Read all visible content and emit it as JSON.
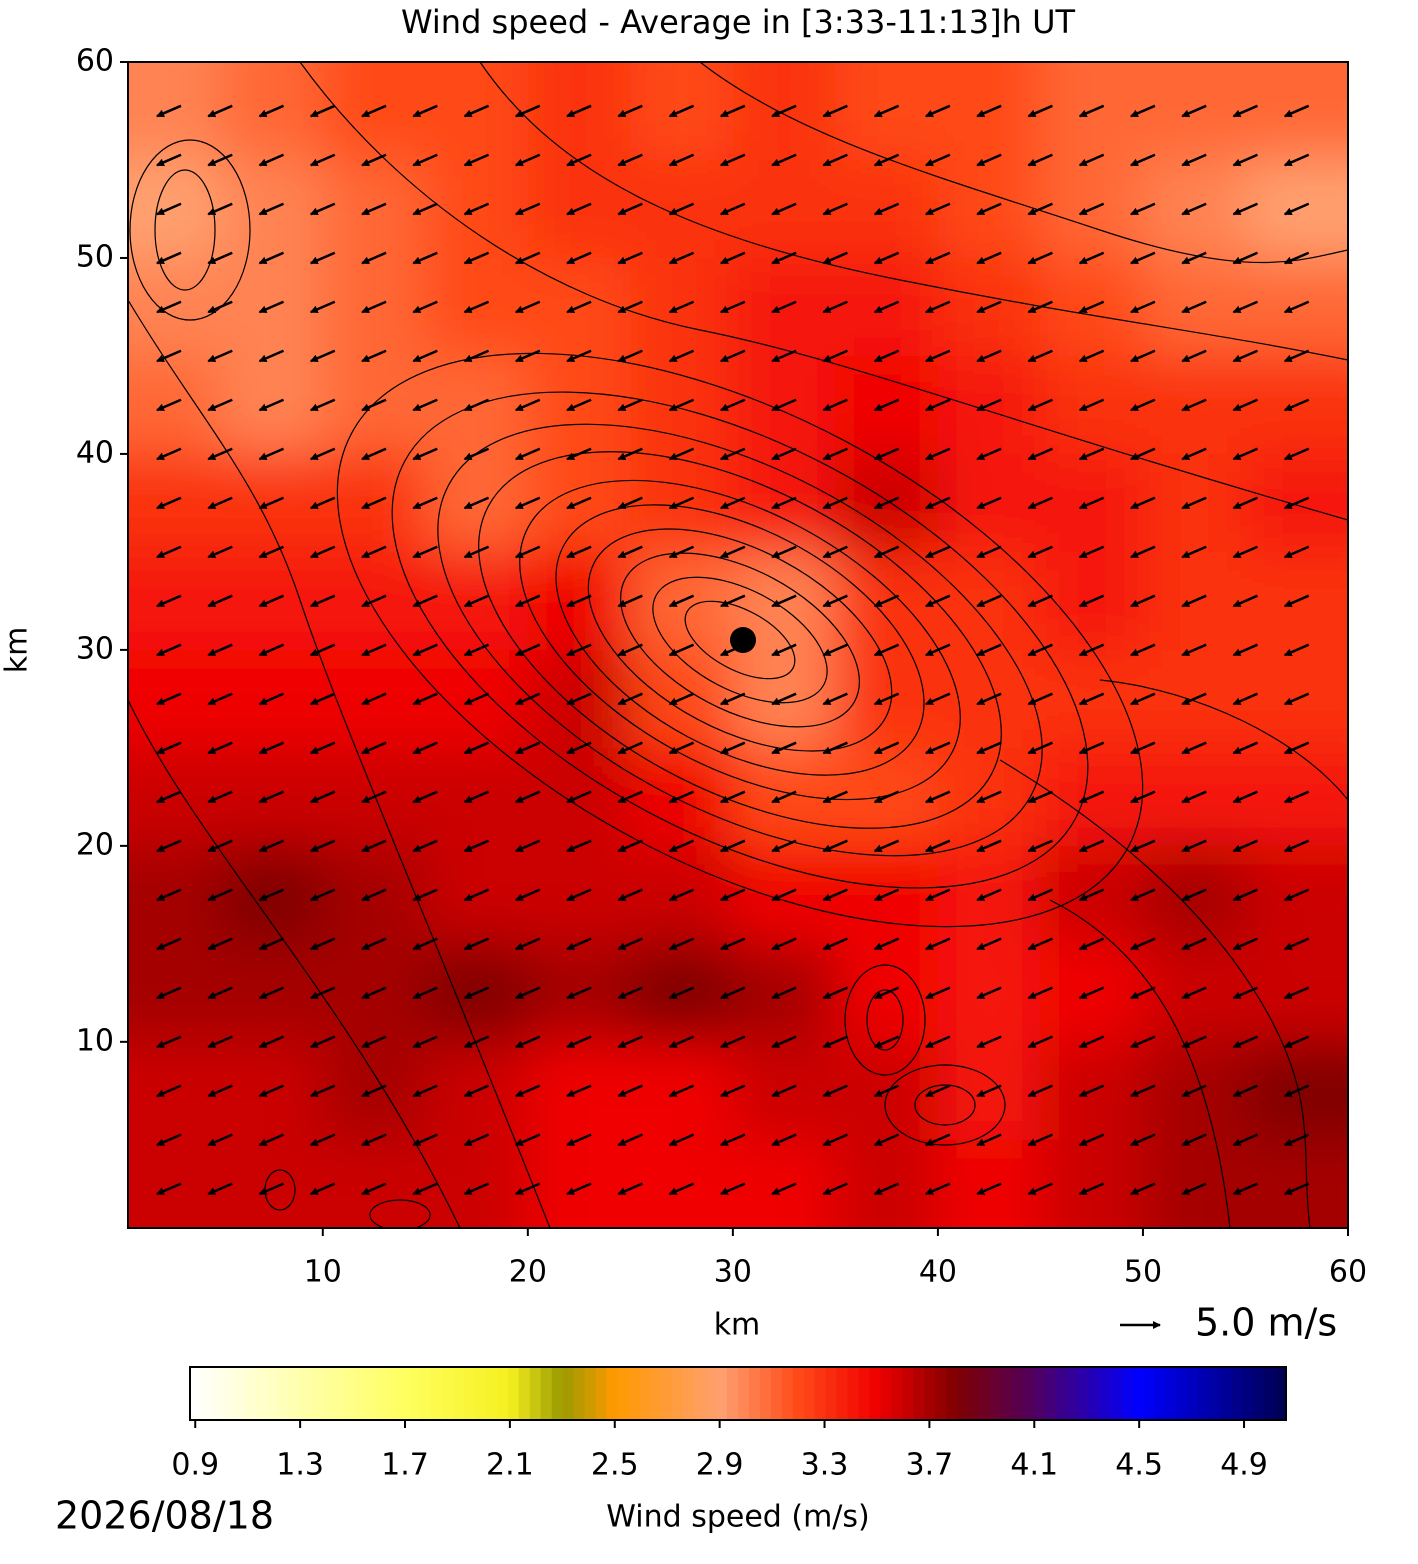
{
  "chart_data": {
    "type": "heatmap",
    "title": "Wind speed - Average in [3:33-11:13]h UT",
    "xlabel": "km",
    "ylabel": "km",
    "xlim": [
      0.5,
      60
    ],
    "ylim": [
      0.5,
      60
    ],
    "xticks": [
      10,
      20,
      30,
      40,
      50,
      60
    ],
    "yticks": [
      10,
      20,
      30,
      40,
      50,
      60
    ],
    "x": [
      2.5,
      7.5,
      12.5,
      17.5,
      22.5,
      27.5,
      32.5,
      37.5,
      42.5,
      47.5,
      52.5,
      57.5
    ],
    "y": [
      57.5,
      52.5,
      47.5,
      42.5,
      37.5,
      32.5,
      27.5,
      22.5,
      17.5,
      12.5,
      7.5,
      2.5
    ],
    "z": [
      [
        3.0,
        3.1,
        3.2,
        3.2,
        3.3,
        3.2,
        3.3,
        3.2,
        3.2,
        3.1,
        3.1,
        3.1
      ],
      [
        2.9,
        3.0,
        3.1,
        3.2,
        3.3,
        3.3,
        3.3,
        3.3,
        3.2,
        3.1,
        3.0,
        2.9
      ],
      [
        3.0,
        3.0,
        3.1,
        3.2,
        3.2,
        3.3,
        3.4,
        3.4,
        3.3,
        3.2,
        3.1,
        3.1
      ],
      [
        3.1,
        3.0,
        3.1,
        3.1,
        3.2,
        3.3,
        3.4,
        3.5,
        3.4,
        3.3,
        3.3,
        3.3
      ],
      [
        3.3,
        3.3,
        3.3,
        3.1,
        3.2,
        3.3,
        3.4,
        3.6,
        3.4,
        3.4,
        3.3,
        3.4
      ],
      [
        3.4,
        3.4,
        3.4,
        3.4,
        3.5,
        3.1,
        3.0,
        3.3,
        3.3,
        3.4,
        3.3,
        3.3
      ],
      [
        3.5,
        3.5,
        3.5,
        3.5,
        3.6,
        3.2,
        3.0,
        3.3,
        3.3,
        3.3,
        3.3,
        3.3
      ],
      [
        3.6,
        3.6,
        3.6,
        3.6,
        3.6,
        3.5,
        3.2,
        3.2,
        3.3,
        3.4,
        3.4,
        3.4
      ],
      [
        3.7,
        3.8,
        3.7,
        3.6,
        3.6,
        3.6,
        3.5,
        3.5,
        3.4,
        3.6,
        3.7,
        3.6
      ],
      [
        3.7,
        3.7,
        3.7,
        3.8,
        3.7,
        3.8,
        3.7,
        3.5,
        3.4,
        3.5,
        3.6,
        3.6
      ],
      [
        3.6,
        3.6,
        3.7,
        3.6,
        3.5,
        3.5,
        3.6,
        3.6,
        3.4,
        3.6,
        3.7,
        3.8
      ],
      [
        3.6,
        3.6,
        3.6,
        3.6,
        3.5,
        3.5,
        3.5,
        3.6,
        3.5,
        3.6,
        3.7,
        3.7
      ]
    ],
    "colormap": [
      {
        "value": 0.88,
        "color": "#ffffff"
      },
      {
        "value": 1.7,
        "color": "#ffff60"
      },
      {
        "value": 2.1,
        "color": "#f5f020"
      },
      {
        "value": 2.3,
        "color": "#9a9a00"
      },
      {
        "value": 2.5,
        "color": "#ff9900"
      },
      {
        "value": 2.9,
        "color": "#ffa070"
      },
      {
        "value": 3.2,
        "color": "#ff4a18"
      },
      {
        "value": 3.5,
        "color": "#f00000"
      },
      {
        "value": 3.8,
        "color": "#800000"
      },
      {
        "value": 4.1,
        "color": "#500060"
      },
      {
        "value": 4.5,
        "color": "#0000ff"
      },
      {
        "value": 5.06,
        "color": "#000050"
      }
    ],
    "colorbar": {
      "label": "Wind speed (m/s)",
      "lim": [
        0.88,
        5.06
      ],
      "ticks": [
        0.9,
        1.3,
        1.7,
        2.1,
        2.5,
        2.9,
        3.3,
        3.7,
        4.1,
        4.5,
        4.9
      ]
    },
    "quiver": {
      "x": [
        2.5,
        5,
        7.5,
        10,
        12.5,
        15,
        17.5,
        20,
        22.5,
        25,
        27.5,
        30,
        32.5,
        35,
        37.5,
        40,
        42.5,
        45,
        47.5,
        50,
        52.5,
        55,
        57.5
      ],
      "y": [
        57.5,
        55,
        52.5,
        50,
        47.5,
        45,
        42.5,
        40,
        37.5,
        35,
        32.5,
        30,
        27.5,
        25,
        22.5,
        20,
        17.5,
        15,
        12.5,
        10,
        7.5,
        5,
        2.5
      ],
      "u": -3.0,
      "v": -1.3,
      "key_value": 5.0,
      "key_label": "5.0 m/s"
    },
    "date": "2026/08/18"
  }
}
